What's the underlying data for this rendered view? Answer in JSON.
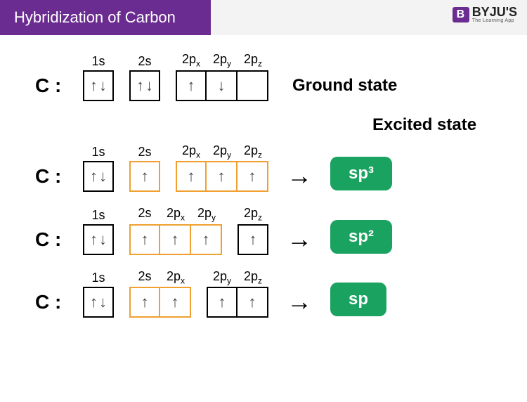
{
  "header": {
    "title": "Hybridization of Carbon",
    "logo_badge": "B",
    "logo_text": "BYJU'S",
    "logo_sub": "The Learning App"
  },
  "colors": {
    "header_bg": "#6b2c91",
    "header_strip": "#f3f3f3",
    "orbital_border_default": "#000000",
    "orbital_border_hybrid": "#f0a030",
    "badge_bg": "#1aa260",
    "arrow_color": "#444444"
  },
  "element": "C :",
  "orbitals": {
    "s1": "1s",
    "s2": "2s",
    "px": "2p",
    "py": "2p",
    "pz": "2p",
    "px_sub": "x",
    "py_sub": "y",
    "pz_sub": "z"
  },
  "spins": {
    "up": "↑",
    "down": "↓",
    "both": "↑↓"
  },
  "states": {
    "ground": "Ground state",
    "excited": "Excited state"
  },
  "arrow": "→",
  "hybrids": {
    "sp3": "sp³",
    "sp2": "sp²",
    "sp": "sp"
  },
  "rows": [
    {
      "state_label": "ground",
      "groups": [
        {
          "labels": [
            "1s"
          ],
          "boxes": [
            {
              "spin": "both",
              "hybrid": false
            }
          ]
        },
        {
          "labels": [
            "2s"
          ],
          "boxes": [
            {
              "spin": "both",
              "hybrid": false
            }
          ]
        },
        {
          "labels": [
            "2px",
            "2py",
            "2pz"
          ],
          "boxes": [
            {
              "spin": "up",
              "hybrid": false
            },
            {
              "spin": "down",
              "hybrid": false
            },
            {
              "spin": "",
              "hybrid": false
            }
          ]
        }
      ]
    },
    {
      "hybrid_badge": "sp3",
      "groups": [
        {
          "labels": [
            "1s"
          ],
          "boxes": [
            {
              "spin": "both",
              "hybrid": false
            }
          ]
        },
        {
          "labels": [
            "2s"
          ],
          "boxes": [
            {
              "spin": "up",
              "hybrid": true
            }
          ]
        },
        {
          "labels": [
            "2px",
            "2py",
            "2pz"
          ],
          "boxes": [
            {
              "spin": "up",
              "hybrid": true
            },
            {
              "spin": "up",
              "hybrid": true
            },
            {
              "spin": "up",
              "hybrid": true
            }
          ]
        }
      ]
    },
    {
      "hybrid_badge": "sp2",
      "groups": [
        {
          "labels": [
            "1s"
          ],
          "boxes": [
            {
              "spin": "both",
              "hybrid": false
            }
          ]
        },
        {
          "labels": [
            "2s",
            "2px",
            "2py"
          ],
          "boxes": [
            {
              "spin": "up",
              "hybrid": true
            },
            {
              "spin": "up",
              "hybrid": true
            },
            {
              "spin": "up",
              "hybrid": true
            }
          ]
        },
        {
          "labels": [
            "2pz"
          ],
          "boxes": [
            {
              "spin": "up",
              "hybrid": false
            }
          ]
        }
      ]
    },
    {
      "hybrid_badge": "sp",
      "groups": [
        {
          "labels": [
            "1s"
          ],
          "boxes": [
            {
              "spin": "both",
              "hybrid": false
            }
          ]
        },
        {
          "labels": [
            "2s",
            "2px"
          ],
          "boxes": [
            {
              "spin": "up",
              "hybrid": true
            },
            {
              "spin": "up",
              "hybrid": true
            }
          ]
        },
        {
          "labels": [
            "2py",
            "2pz"
          ],
          "boxes": [
            {
              "spin": "up",
              "hybrid": false
            },
            {
              "spin": "up",
              "hybrid": false
            }
          ]
        }
      ]
    }
  ]
}
